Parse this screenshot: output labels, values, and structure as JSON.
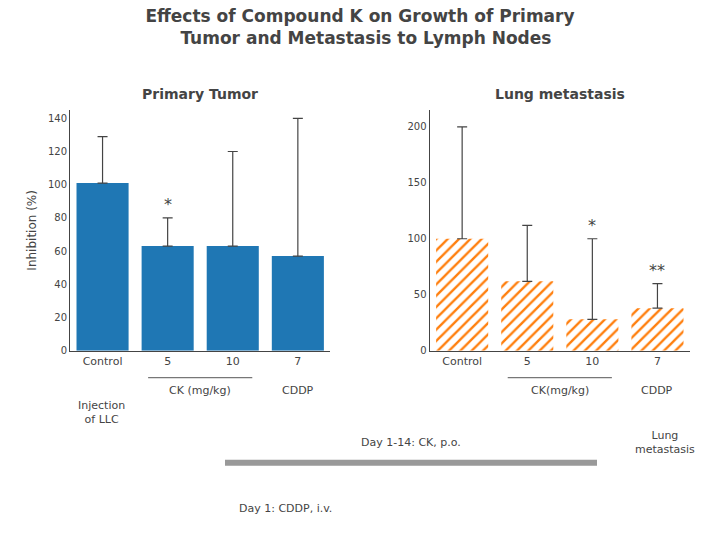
{
  "title": [
    "Effects of Compound K on Growth of Primary",
    "  Tumor and Metastasis to Lymph Nodes"
  ],
  "annotations": [
    {
      "text": [
        "Injection",
        "of LLC"
      ]
    },
    {
      "text": [
        "Day 1-14: CK, p.o."
      ]
    },
    {
      "text": [
        "Day 1: CDDP, i.v."
      ]
    },
    {
      "text": [
        "Lung",
        "metastasis"
      ]
    }
  ],
  "chart_data": [
    {
      "type": "bar",
      "title": "Primary Tumor",
      "ylabel": "Inhibition (%)",
      "categories": [
        "Control",
        "5",
        "10",
        "7"
      ],
      "values": [
        101,
        63,
        63,
        57
      ],
      "errors_upper": [
        28,
        17,
        57,
        83
      ],
      "ylim": [
        0,
        145
      ],
      "yticks": [
        0,
        20,
        40,
        60,
        80,
        100,
        120,
        140
      ],
      "grid": false,
      "annotations": [
        {
          "text": "*",
          "category": 1
        },
        {
          "text": "CK (mg/kg)",
          "categories": [
            1,
            2
          ]
        },
        {
          "text": "CDDP",
          "categories": [
            3
          ]
        }
      ]
    },
    {
      "type": "bar",
      "title": "Lung metastasis",
      "categories": [
        "Control",
        "5",
        "10",
        "7"
      ],
      "values": [
        100,
        62,
        28,
        38
      ],
      "errors_upper": [
        100,
        50,
        72,
        22
      ],
      "ylim": [
        0,
        215
      ],
      "yticks": [
        0,
        50,
        100,
        150,
        200
      ],
      "grid": false,
      "marker": "hatched",
      "annotations": [
        {
          "text": "*",
          "category": 2
        },
        {
          "text": "**",
          "category": 3
        },
        {
          "text": "CK(mg/kg)",
          "categories": [
            1,
            2
          ]
        },
        {
          "text": "CDDP",
          "categories": [
            3
          ]
        }
      ]
    }
  ]
}
